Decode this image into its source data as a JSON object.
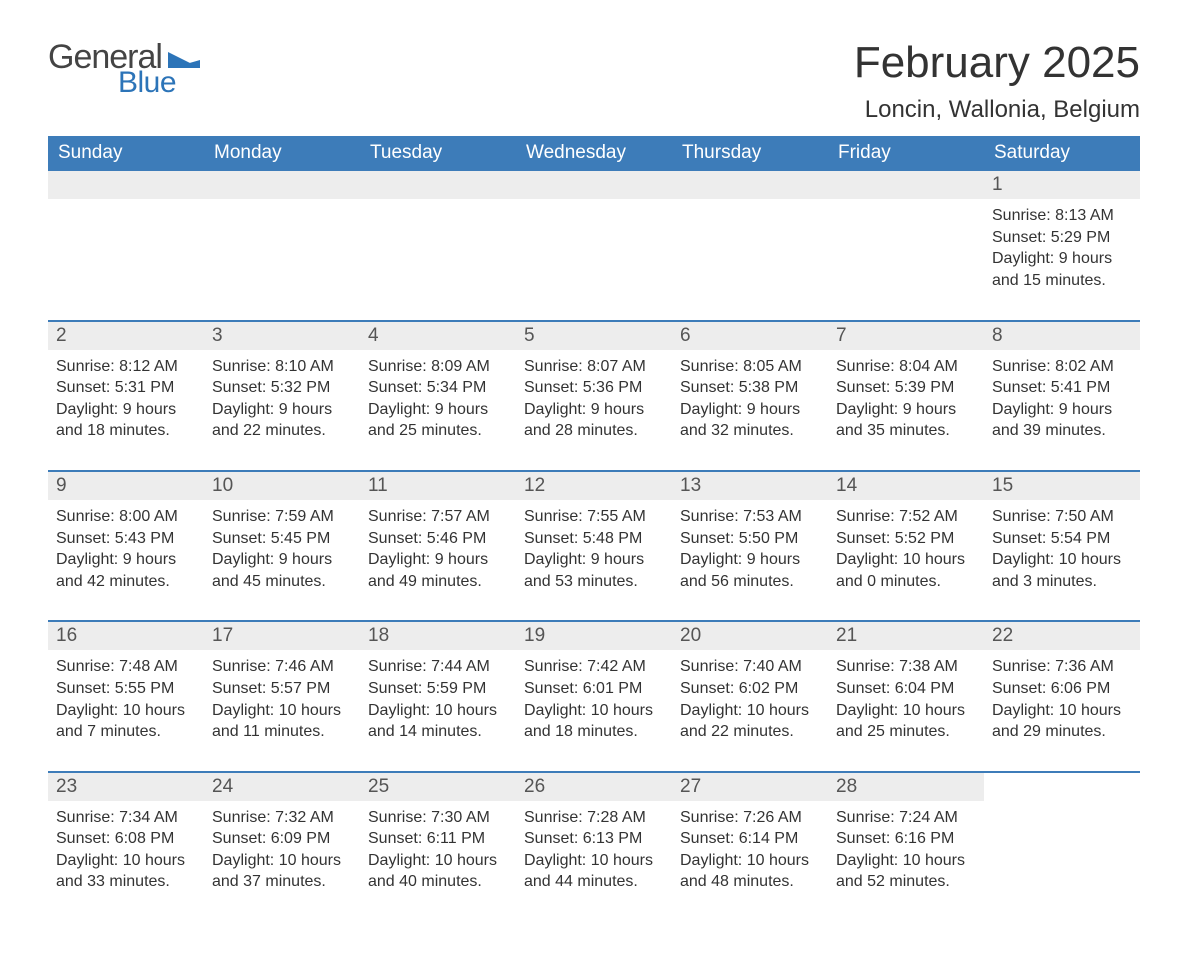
{
  "logo": {
    "text_general": "General",
    "text_blue": "Blue",
    "triangle_color": "#2c74b8"
  },
  "title": {
    "month_year": "February 2025",
    "location": "Loncin, Wallonia, Belgium"
  },
  "colors": {
    "header_bg": "#3d7cb9",
    "header_text": "#ffffff",
    "daynum_bg": "#ededed",
    "daynum_text": "#555555",
    "body_text": "#333333",
    "row_border": "#3d7cb9"
  },
  "typography": {
    "month_title_fontsize": 44,
    "location_fontsize": 24,
    "dayname_fontsize": 19,
    "daynum_fontsize": 19,
    "cell_fontsize": 16
  },
  "day_names": [
    "Sunday",
    "Monday",
    "Tuesday",
    "Wednesday",
    "Thursday",
    "Friday",
    "Saturday"
  ],
  "weeks": [
    [
      {
        "day": "",
        "lines": []
      },
      {
        "day": "",
        "lines": []
      },
      {
        "day": "",
        "lines": []
      },
      {
        "day": "",
        "lines": []
      },
      {
        "day": "",
        "lines": []
      },
      {
        "day": "",
        "lines": []
      },
      {
        "day": "1",
        "lines": [
          "Sunrise: 8:13 AM",
          "Sunset: 5:29 PM",
          "Daylight: 9 hours",
          "and 15 minutes."
        ]
      }
    ],
    [
      {
        "day": "2",
        "lines": [
          "Sunrise: 8:12 AM",
          "Sunset: 5:31 PM",
          "Daylight: 9 hours",
          "and 18 minutes."
        ]
      },
      {
        "day": "3",
        "lines": [
          "Sunrise: 8:10 AM",
          "Sunset: 5:32 PM",
          "Daylight: 9 hours",
          "and 22 minutes."
        ]
      },
      {
        "day": "4",
        "lines": [
          "Sunrise: 8:09 AM",
          "Sunset: 5:34 PM",
          "Daylight: 9 hours",
          "and 25 minutes."
        ]
      },
      {
        "day": "5",
        "lines": [
          "Sunrise: 8:07 AM",
          "Sunset: 5:36 PM",
          "Daylight: 9 hours",
          "and 28 minutes."
        ]
      },
      {
        "day": "6",
        "lines": [
          "Sunrise: 8:05 AM",
          "Sunset: 5:38 PM",
          "Daylight: 9 hours",
          "and 32 minutes."
        ]
      },
      {
        "day": "7",
        "lines": [
          "Sunrise: 8:04 AM",
          "Sunset: 5:39 PM",
          "Daylight: 9 hours",
          "and 35 minutes."
        ]
      },
      {
        "day": "8",
        "lines": [
          "Sunrise: 8:02 AM",
          "Sunset: 5:41 PM",
          "Daylight: 9 hours",
          "and 39 minutes."
        ]
      }
    ],
    [
      {
        "day": "9",
        "lines": [
          "Sunrise: 8:00 AM",
          "Sunset: 5:43 PM",
          "Daylight: 9 hours",
          "and 42 minutes."
        ]
      },
      {
        "day": "10",
        "lines": [
          "Sunrise: 7:59 AM",
          "Sunset: 5:45 PM",
          "Daylight: 9 hours",
          "and 45 minutes."
        ]
      },
      {
        "day": "11",
        "lines": [
          "Sunrise: 7:57 AM",
          "Sunset: 5:46 PM",
          "Daylight: 9 hours",
          "and 49 minutes."
        ]
      },
      {
        "day": "12",
        "lines": [
          "Sunrise: 7:55 AM",
          "Sunset: 5:48 PM",
          "Daylight: 9 hours",
          "and 53 minutes."
        ]
      },
      {
        "day": "13",
        "lines": [
          "Sunrise: 7:53 AM",
          "Sunset: 5:50 PM",
          "Daylight: 9 hours",
          "and 56 minutes."
        ]
      },
      {
        "day": "14",
        "lines": [
          "Sunrise: 7:52 AM",
          "Sunset: 5:52 PM",
          "Daylight: 10 hours",
          "and 0 minutes."
        ]
      },
      {
        "day": "15",
        "lines": [
          "Sunrise: 7:50 AM",
          "Sunset: 5:54 PM",
          "Daylight: 10 hours",
          "and 3 minutes."
        ]
      }
    ],
    [
      {
        "day": "16",
        "lines": [
          "Sunrise: 7:48 AM",
          "Sunset: 5:55 PM",
          "Daylight: 10 hours",
          "and 7 minutes."
        ]
      },
      {
        "day": "17",
        "lines": [
          "Sunrise: 7:46 AM",
          "Sunset: 5:57 PM",
          "Daylight: 10 hours",
          "and 11 minutes."
        ]
      },
      {
        "day": "18",
        "lines": [
          "Sunrise: 7:44 AM",
          "Sunset: 5:59 PM",
          "Daylight: 10 hours",
          "and 14 minutes."
        ]
      },
      {
        "day": "19",
        "lines": [
          "Sunrise: 7:42 AM",
          "Sunset: 6:01 PM",
          "Daylight: 10 hours",
          "and 18 minutes."
        ]
      },
      {
        "day": "20",
        "lines": [
          "Sunrise: 7:40 AM",
          "Sunset: 6:02 PM",
          "Daylight: 10 hours",
          "and 22 minutes."
        ]
      },
      {
        "day": "21",
        "lines": [
          "Sunrise: 7:38 AM",
          "Sunset: 6:04 PM",
          "Daylight: 10 hours",
          "and 25 minutes."
        ]
      },
      {
        "day": "22",
        "lines": [
          "Sunrise: 7:36 AM",
          "Sunset: 6:06 PM",
          "Daylight: 10 hours",
          "and 29 minutes."
        ]
      }
    ],
    [
      {
        "day": "23",
        "lines": [
          "Sunrise: 7:34 AM",
          "Sunset: 6:08 PM",
          "Daylight: 10 hours",
          "and 33 minutes."
        ]
      },
      {
        "day": "24",
        "lines": [
          "Sunrise: 7:32 AM",
          "Sunset: 6:09 PM",
          "Daylight: 10 hours",
          "and 37 minutes."
        ]
      },
      {
        "day": "25",
        "lines": [
          "Sunrise: 7:30 AM",
          "Sunset: 6:11 PM",
          "Daylight: 10 hours",
          "and 40 minutes."
        ]
      },
      {
        "day": "26",
        "lines": [
          "Sunrise: 7:28 AM",
          "Sunset: 6:13 PM",
          "Daylight: 10 hours",
          "and 44 minutes."
        ]
      },
      {
        "day": "27",
        "lines": [
          "Sunrise: 7:26 AM",
          "Sunset: 6:14 PM",
          "Daylight: 10 hours",
          "and 48 minutes."
        ]
      },
      {
        "day": "28",
        "lines": [
          "Sunrise: 7:24 AM",
          "Sunset: 6:16 PM",
          "Daylight: 10 hours",
          "and 52 minutes."
        ]
      },
      {
        "day": "",
        "lines": []
      }
    ]
  ]
}
